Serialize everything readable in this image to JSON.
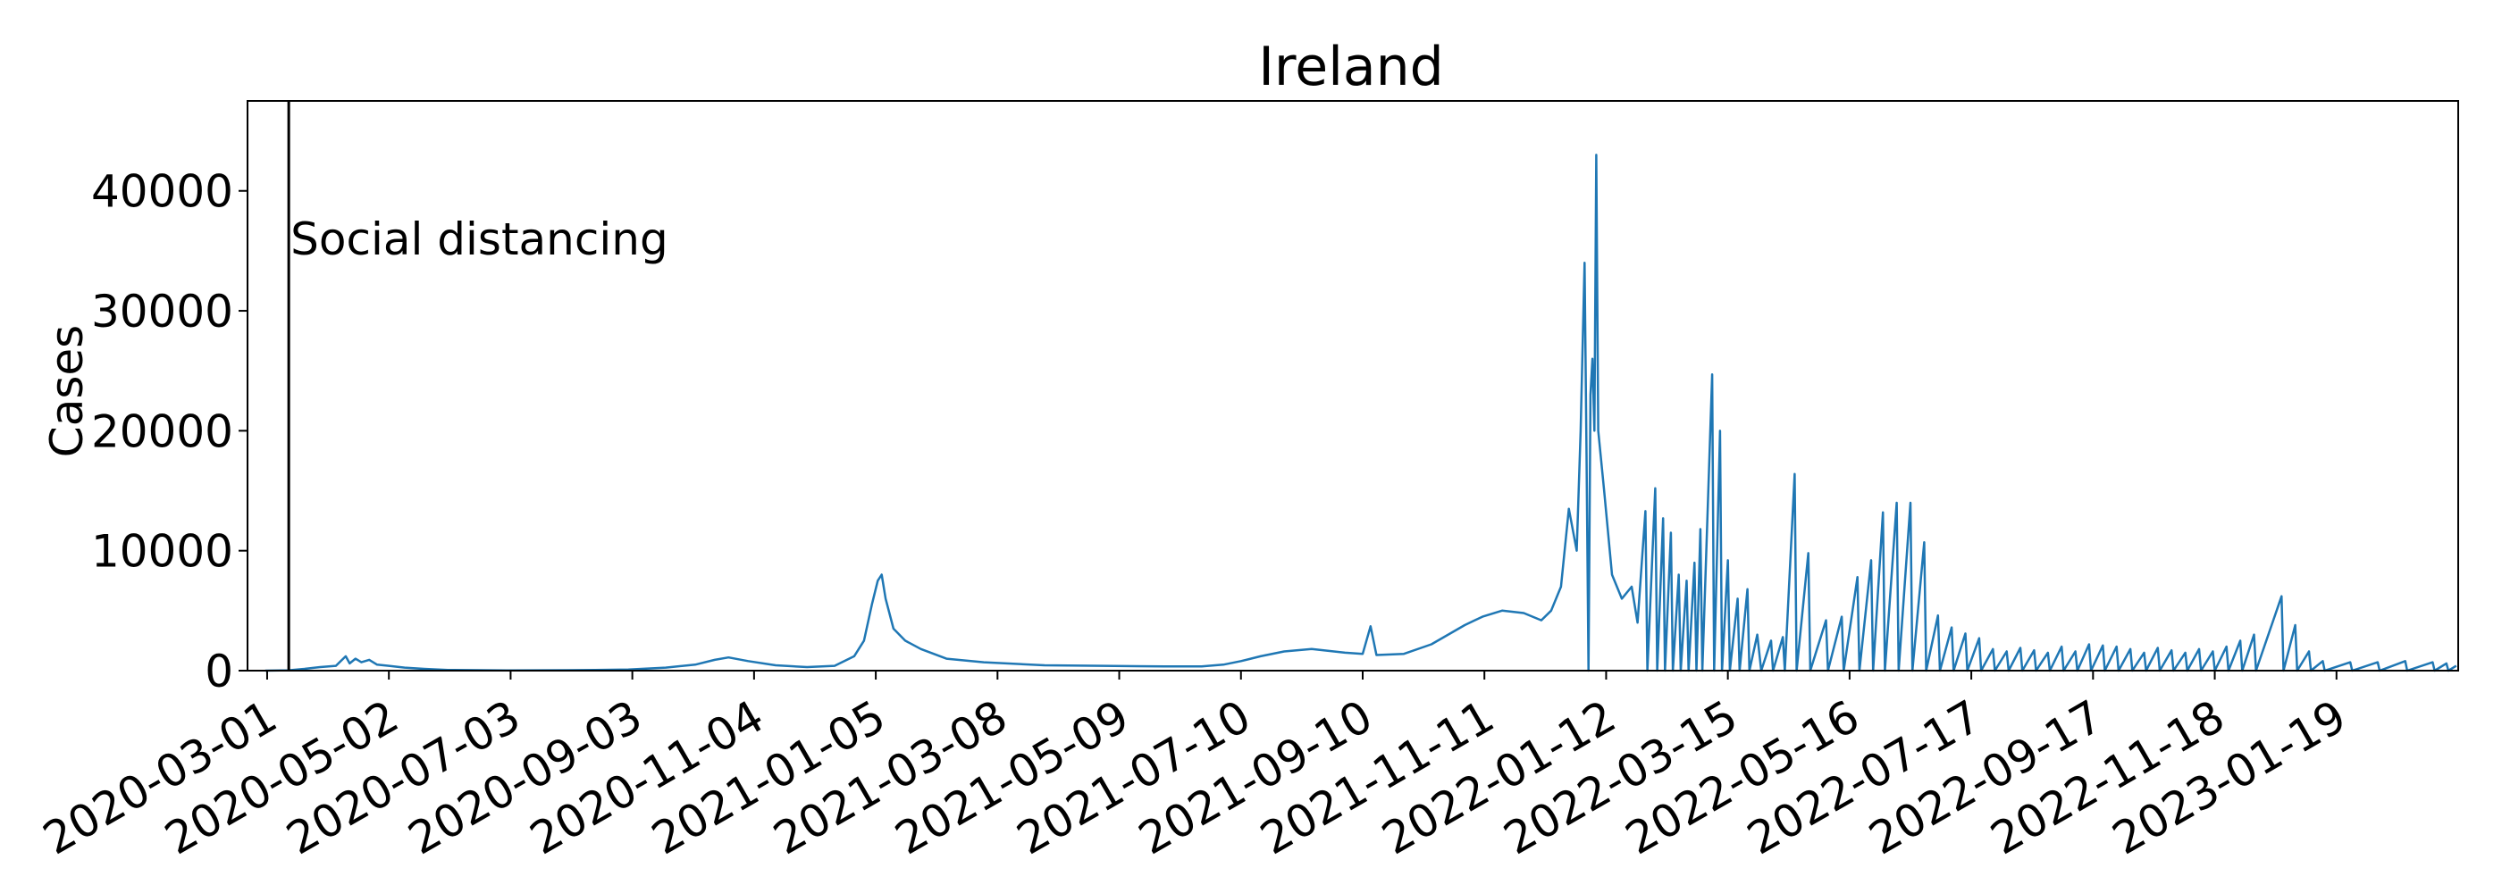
{
  "chart_data": {
    "type": "line",
    "title": "Ireland",
    "xlabel": "",
    "ylabel": "Cases",
    "x_axis_type": "date",
    "xlim": [
      "2020-02-20",
      "2023-03-22"
    ],
    "ylim": [
      0,
      47500
    ],
    "x_ticks": [
      "2020-03-01",
      "2020-05-02",
      "2020-07-03",
      "2020-09-03",
      "2020-11-04",
      "2021-01-05",
      "2021-03-08",
      "2021-05-09",
      "2021-07-10",
      "2021-09-10",
      "2021-11-11",
      "2022-01-12",
      "2022-03-15",
      "2022-05-16",
      "2022-07-17",
      "2022-09-17",
      "2022-11-18",
      "2023-01-19"
    ],
    "y_ticks": [
      0,
      10000,
      20000,
      30000,
      40000
    ],
    "grid": false,
    "legend": "none",
    "annotations": [
      {
        "label": "Social distancing",
        "x": "2020-03-12",
        "type": "vertical-line",
        "color": "#000000"
      }
    ],
    "series": [
      {
        "color": "#1f77b4",
        "points": [
          [
            "2020-02-29",
            0
          ],
          [
            "2020-03-12",
            30
          ],
          [
            "2020-03-20",
            150
          ],
          [
            "2020-03-28",
            300
          ],
          [
            "2020-04-05",
            400
          ],
          [
            "2020-04-10",
            1200
          ],
          [
            "2020-04-12",
            600
          ],
          [
            "2020-04-15",
            1000
          ],
          [
            "2020-04-18",
            700
          ],
          [
            "2020-04-22",
            900
          ],
          [
            "2020-04-26",
            500
          ],
          [
            "2020-05-02",
            400
          ],
          [
            "2020-05-10",
            250
          ],
          [
            "2020-05-20",
            150
          ],
          [
            "2020-06-01",
            60
          ],
          [
            "2020-07-01",
            20
          ],
          [
            "2020-08-01",
            40
          ],
          [
            "2020-08-15",
            60
          ],
          [
            "2020-09-01",
            100
          ],
          [
            "2020-09-20",
            250
          ],
          [
            "2020-10-05",
            500
          ],
          [
            "2020-10-15",
            900
          ],
          [
            "2020-10-22",
            1100
          ],
          [
            "2020-11-01",
            800
          ],
          [
            "2020-11-15",
            450
          ],
          [
            "2020-12-01",
            300
          ],
          [
            "2020-12-15",
            400
          ],
          [
            "2020-12-25",
            1200
          ],
          [
            "2020-12-30",
            2500
          ],
          [
            "2021-01-03",
            5500
          ],
          [
            "2021-01-06",
            7500
          ],
          [
            "2021-01-08",
            8000
          ],
          [
            "2021-01-10",
            6000
          ],
          [
            "2021-01-14",
            3500
          ],
          [
            "2021-01-20",
            2500
          ],
          [
            "2021-01-28",
            1800
          ],
          [
            "2021-02-10",
            1000
          ],
          [
            "2021-03-01",
            700
          ],
          [
            "2021-04-01",
            450
          ],
          [
            "2021-05-01",
            400
          ],
          [
            "2021-06-01",
            350
          ],
          [
            "2021-06-20",
            350
          ],
          [
            "2021-07-01",
            500
          ],
          [
            "2021-07-10",
            800
          ],
          [
            "2021-07-20",
            1200
          ],
          [
            "2021-08-01",
            1600
          ],
          [
            "2021-08-15",
            1800
          ],
          [
            "2021-09-01",
            1500
          ],
          [
            "2021-09-10",
            1400
          ],
          [
            "2021-09-14",
            3700
          ],
          [
            "2021-09-17",
            1300
          ],
          [
            "2021-10-01",
            1400
          ],
          [
            "2021-10-15",
            2200
          ],
          [
            "2021-11-01",
            3800
          ],
          [
            "2021-11-10",
            4500
          ],
          [
            "2021-11-20",
            5000
          ],
          [
            "2021-12-01",
            4800
          ],
          [
            "2021-12-10",
            4200
          ],
          [
            "2021-12-15",
            5000
          ],
          [
            "2021-12-20",
            7000
          ],
          [
            "2021-12-24",
            13500
          ],
          [
            "2021-12-28",
            10000
          ],
          [
            "2021-12-30",
            20000
          ],
          [
            "2022-01-01",
            34000
          ],
          [
            "2022-01-02",
            18000
          ],
          [
            "2022-01-03",
            0
          ],
          [
            "2022-01-04",
            23000
          ],
          [
            "2022-01-05",
            26000
          ],
          [
            "2022-01-06",
            20000
          ],
          [
            "2022-01-07",
            43000
          ],
          [
            "2022-01-08",
            20000
          ],
          [
            "2022-01-11",
            15000
          ],
          [
            "2022-01-15",
            8000
          ],
          [
            "2022-01-20",
            6000
          ],
          [
            "2022-01-25",
            7000
          ],
          [
            "2022-01-28",
            4000
          ],
          [
            "2022-02-01",
            13300
          ],
          [
            "2022-02-02",
            0
          ],
          [
            "2022-02-06",
            15200
          ],
          [
            "2022-02-07",
            0
          ],
          [
            "2022-02-10",
            12700
          ],
          [
            "2022-02-11",
            0
          ],
          [
            "2022-02-14",
            11500
          ],
          [
            "2022-02-15",
            0
          ],
          [
            "2022-02-18",
            8000
          ],
          [
            "2022-02-19",
            0
          ],
          [
            "2022-02-22",
            7500
          ],
          [
            "2022-02-23",
            0
          ],
          [
            "2022-02-26",
            9000
          ],
          [
            "2022-02-27",
            0
          ],
          [
            "2022-03-01",
            11800
          ],
          [
            "2022-03-02",
            0
          ],
          [
            "2022-03-07",
            24700
          ],
          [
            "2022-03-08",
            0
          ],
          [
            "2022-03-11",
            20000
          ],
          [
            "2022-03-12",
            0
          ],
          [
            "2022-03-15",
            9200
          ],
          [
            "2022-03-16",
            0
          ],
          [
            "2022-03-20",
            6000
          ],
          [
            "2022-03-21",
            0
          ],
          [
            "2022-03-25",
            6800
          ],
          [
            "2022-03-26",
            0
          ],
          [
            "2022-03-30",
            3000
          ],
          [
            "2022-04-01",
            0
          ],
          [
            "2022-04-06",
            2500
          ],
          [
            "2022-04-07",
            0
          ],
          [
            "2022-04-12",
            2800
          ],
          [
            "2022-04-13",
            0
          ],
          [
            "2022-04-18",
            16400
          ],
          [
            "2022-04-19",
            0
          ],
          [
            "2022-04-25",
            9800
          ],
          [
            "2022-04-26",
            0
          ],
          [
            "2022-05-04",
            4200
          ],
          [
            "2022-05-05",
            0
          ],
          [
            "2022-05-12",
            4500
          ],
          [
            "2022-05-13",
            0
          ],
          [
            "2022-05-20",
            7800
          ],
          [
            "2022-05-21",
            0
          ],
          [
            "2022-05-27",
            9200
          ],
          [
            "2022-05-28",
            0
          ],
          [
            "2022-06-02",
            13200
          ],
          [
            "2022-06-03",
            0
          ],
          [
            "2022-06-09",
            14000
          ],
          [
            "2022-06-10",
            0
          ],
          [
            "2022-06-16",
            14000
          ],
          [
            "2022-06-17",
            0
          ],
          [
            "2022-06-23",
            10700
          ],
          [
            "2022-06-24",
            0
          ],
          [
            "2022-06-30",
            4600
          ],
          [
            "2022-07-01",
            0
          ],
          [
            "2022-07-07",
            3600
          ],
          [
            "2022-07-08",
            0
          ],
          [
            "2022-07-14",
            3100
          ],
          [
            "2022-07-15",
            0
          ],
          [
            "2022-07-21",
            2700
          ],
          [
            "2022-07-22",
            0
          ],
          [
            "2022-07-28",
            1800
          ],
          [
            "2022-07-29",
            0
          ],
          [
            "2022-08-04",
            1600
          ],
          [
            "2022-08-05",
            0
          ],
          [
            "2022-08-11",
            1900
          ],
          [
            "2022-08-12",
            0
          ],
          [
            "2022-08-18",
            1700
          ],
          [
            "2022-08-19",
            0
          ],
          [
            "2022-08-25",
            1500
          ],
          [
            "2022-08-26",
            0
          ],
          [
            "2022-09-01",
            2000
          ],
          [
            "2022-09-02",
            0
          ],
          [
            "2022-09-08",
            1600
          ],
          [
            "2022-09-09",
            0
          ],
          [
            "2022-09-15",
            2200
          ],
          [
            "2022-09-16",
            0
          ],
          [
            "2022-09-22",
            2100
          ],
          [
            "2022-09-23",
            0
          ],
          [
            "2022-09-29",
            2000
          ],
          [
            "2022-09-30",
            0
          ],
          [
            "2022-10-06",
            1800
          ],
          [
            "2022-10-07",
            0
          ],
          [
            "2022-10-13",
            1500
          ],
          [
            "2022-10-14",
            0
          ],
          [
            "2022-10-20",
            1900
          ],
          [
            "2022-10-21",
            0
          ],
          [
            "2022-10-27",
            1700
          ],
          [
            "2022-10-28",
            0
          ],
          [
            "2022-11-03",
            1500
          ],
          [
            "2022-11-04",
            0
          ],
          [
            "2022-11-10",
            1800
          ],
          [
            "2022-11-11",
            0
          ],
          [
            "2022-11-17",
            1600
          ],
          [
            "2022-11-18",
            0
          ],
          [
            "2022-11-24",
            2000
          ],
          [
            "2022-11-25",
            0
          ],
          [
            "2022-12-01",
            2500
          ],
          [
            "2022-12-02",
            0
          ],
          [
            "2022-12-08",
            3000
          ],
          [
            "2022-12-09",
            0
          ],
          [
            "2022-12-22",
            6200
          ],
          [
            "2022-12-23",
            0
          ],
          [
            "2022-12-29",
            3800
          ],
          [
            "2022-12-30",
            0
          ],
          [
            "2023-01-05",
            1600
          ],
          [
            "2023-01-06",
            0
          ],
          [
            "2023-01-12",
            800
          ],
          [
            "2023-01-13",
            0
          ],
          [
            "2023-01-26",
            700
          ],
          [
            "2023-01-27",
            0
          ],
          [
            "2023-02-09",
            700
          ],
          [
            "2023-02-10",
            0
          ],
          [
            "2023-02-23",
            800
          ],
          [
            "2023-02-24",
            0
          ],
          [
            "2023-03-09",
            700
          ],
          [
            "2023-03-10",
            0
          ],
          [
            "2023-03-16",
            600
          ],
          [
            "2023-03-17",
            0
          ],
          [
            "2023-03-21",
            400
          ]
        ]
      }
    ]
  }
}
